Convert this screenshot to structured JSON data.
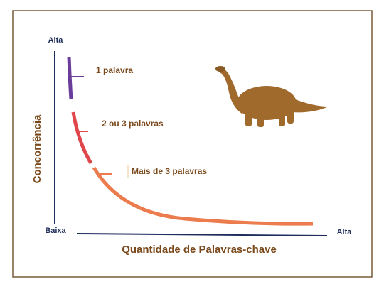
{
  "axes": {
    "y_top": "Alta",
    "origin": "Baixa",
    "x_end": "Alta",
    "y_title": "Concorrência",
    "x_title": "Quantidade de Palavras-chave"
  },
  "segments": [
    {
      "label": "1 palavra"
    },
    {
      "label": "2 ou 3 palavras"
    },
    {
      "label": "Mais de 3 palavras"
    }
  ]
}
